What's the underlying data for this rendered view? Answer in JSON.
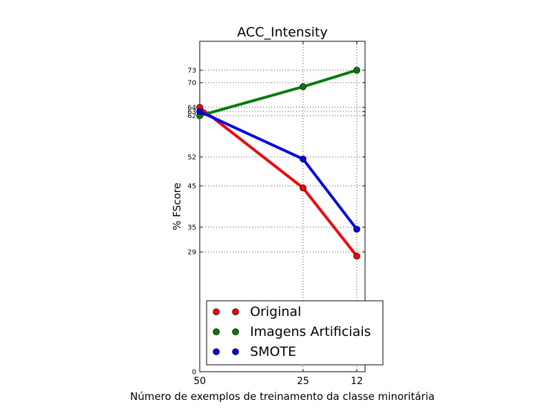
{
  "chart_data": {
    "type": "line",
    "title": "ACC_Intensity",
    "xlabel": "Número de exemplos de treinamento da classe minoritária",
    "ylabel": "% FScore",
    "x": [
      50,
      25,
      12
    ],
    "xticks": [
      "50",
      "25",
      "12"
    ],
    "yticks": [
      0,
      29,
      35,
      45,
      52,
      62,
      63,
      64,
      70,
      73
    ],
    "ylim": [
      0,
      80
    ],
    "grid": true,
    "legend_position": "lower-right",
    "series": [
      {
        "name": "Original",
        "color": "#ff0000",
        "values": [
          64,
          44.5,
          28
        ]
      },
      {
        "name": "Imagens Artificiais",
        "color": "#008000",
        "values": [
          62,
          69,
          73
        ]
      },
      {
        "name": "SMOTE",
        "color": "#0000ff",
        "values": [
          63,
          51.5,
          34.5
        ]
      }
    ]
  }
}
